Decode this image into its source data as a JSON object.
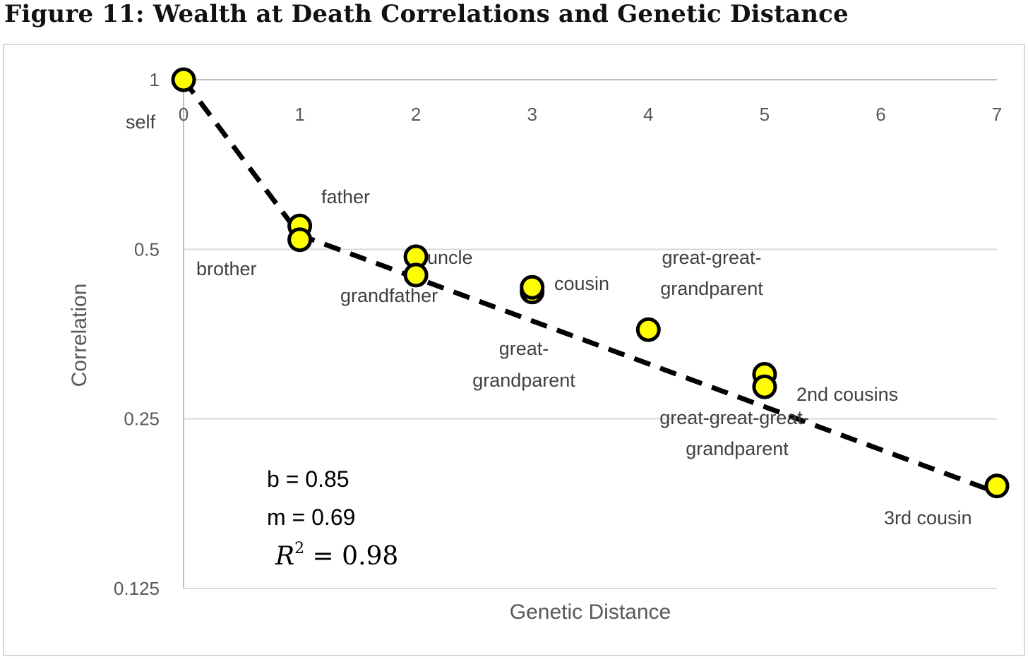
{
  "figure_title": "Figure 11:  Wealth at Death Correlations and Genetic Distance",
  "chart_data": {
    "type": "scatter",
    "title": "",
    "xlabel": "Genetic Distance",
    "ylabel": "Correlation",
    "y_scale": "log2",
    "xlim": [
      0,
      7
    ],
    "ylim": [
      0.125,
      1
    ],
    "x_ticks": [
      "0",
      "1",
      "2",
      "3",
      "4",
      "5",
      "6",
      "7"
    ],
    "y_ticks": [
      "1",
      "0.5",
      "0.25",
      "0.125"
    ],
    "y_tick_values": [
      1,
      0.5,
      0.25,
      0.125
    ],
    "x_axis_position": "top (crossing at y = 1)",
    "grid": "horizontal major gridlines",
    "marker_color": "#ffff00",
    "marker_edge_color": "#000000",
    "trendline": {
      "style": "dashed black",
      "segments": [
        [
          0,
          1.0
        ],
        [
          1,
          0.53
        ],
        [
          7,
          0.185
        ]
      ]
    },
    "points": [
      {
        "x": 0,
        "y": 1.0,
        "label": "self"
      },
      {
        "x": 1,
        "y": 0.55,
        "label": "father"
      },
      {
        "x": 1,
        "y": 0.52,
        "label": "brother"
      },
      {
        "x": 2,
        "y": 0.485,
        "label": "uncle"
      },
      {
        "x": 2,
        "y": 0.45,
        "label": "grandfather"
      },
      {
        "x": 3,
        "y": 0.42,
        "label": ""
      },
      {
        "x": 3,
        "y": 0.428,
        "label": "cousin"
      },
      {
        "x": 4,
        "y": 0.36,
        "label": "great-great-grandparent"
      },
      {
        "x": 5,
        "y": 0.3,
        "label": "2nd cousins"
      },
      {
        "x": 5,
        "y": 0.285,
        "label": "great-great-great-grandparent"
      },
      {
        "x": 7,
        "y": 0.19,
        "label": "3rd cousin"
      }
    ],
    "labels": {
      "self": "self",
      "father": "father",
      "brother": "brother",
      "uncle": "uncle",
      "grandfather": "grandfather",
      "cousin": "cousin",
      "great_grandparent_1": "great-",
      "great_grandparent_2": "grandparent",
      "gg_grandparent_1": "great-great-",
      "gg_grandparent_2": "grandparent",
      "second_cousins": "2nd cousins",
      "ggg_grandparent_1": "great-great-great-",
      "ggg_grandparent_2": "grandparent",
      "third_cousin": "3rd cousin"
    },
    "annotations": {
      "b": "b = 0.85",
      "m": "m = 0.69",
      "r2_symbol": "R",
      "r2_sup": "2",
      "r2_rest": " = 0.98"
    }
  }
}
